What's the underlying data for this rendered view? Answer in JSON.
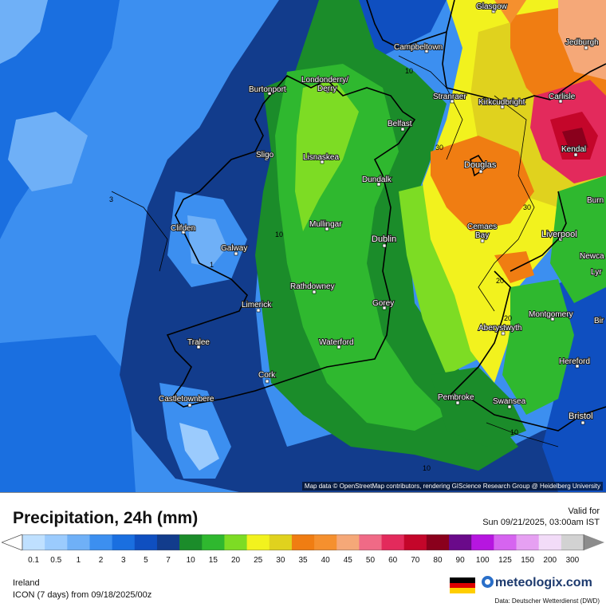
{
  "map": {
    "attribution": "Map data © OpenStreetMap contributors, rendering GIScience Research Group @ Heidelberg University",
    "cities": [
      {
        "name": "Glasgow"
      },
      {
        "name": "Campbeltown"
      },
      {
        "name": "Jedburgh"
      },
      {
        "name": "Londonderry/\nDerry"
      },
      {
        "name": "Burtonport"
      },
      {
        "name": "Stranraer"
      },
      {
        "name": "Kirkcudbright"
      },
      {
        "name": "Carlisle"
      },
      {
        "name": "Belfast"
      },
      {
        "name": "Sligo"
      },
      {
        "name": "Lisnaskea"
      },
      {
        "name": "Kendal"
      },
      {
        "name": "Douglas"
      },
      {
        "name": "Dundalk"
      },
      {
        "name": "Clifden"
      },
      {
        "name": "Mullingar"
      },
      {
        "name": "Galway"
      },
      {
        "name": "Dublin"
      },
      {
        "name": "Cemaes\nBay"
      },
      {
        "name": "Liverpool"
      },
      {
        "name": "Rathdowney"
      },
      {
        "name": "Limerick"
      },
      {
        "name": "Gorey"
      },
      {
        "name": "Montgomery"
      },
      {
        "name": "Aberystwyth"
      },
      {
        "name": "Tralee"
      },
      {
        "name": "Waterford"
      },
      {
        "name": "Hereford"
      },
      {
        "name": "Cork"
      },
      {
        "name": "Castletownbere"
      },
      {
        "name": "Pembroke"
      },
      {
        "name": "Swansea"
      },
      {
        "name": "Bristol"
      }
    ],
    "cut_labels": [
      "Burn",
      "Newca",
      "Lyr",
      "Bir"
    ],
    "contour_labels": [
      "10",
      "30",
      "30",
      "10",
      "3",
      "1",
      "20",
      "20",
      "10",
      "10"
    ]
  },
  "legend": {
    "title": "Precipitation, 24h (mm)",
    "valid_for_label": "Valid for",
    "valid_time": "Sun 09/21/2025, 03:00am IST",
    "scale": [
      {
        "value": "0.1",
        "color": "#bfe0ff"
      },
      {
        "value": "0.5",
        "color": "#9bcbfd"
      },
      {
        "value": "1",
        "color": "#6fb0f7"
      },
      {
        "value": "2",
        "color": "#3c8ff0"
      },
      {
        "value": "3",
        "color": "#1a6fe0"
      },
      {
        "value": "5",
        "color": "#0f4fc0"
      },
      {
        "value": "7",
        "color": "#123c8c"
      },
      {
        "value": "10",
        "color": "#1b8c2a"
      },
      {
        "value": "15",
        "color": "#2fb82f"
      },
      {
        "value": "20",
        "color": "#7ddc24"
      },
      {
        "value": "25",
        "color": "#f2f21e"
      },
      {
        "value": "30",
        "color": "#e0d21e"
      },
      {
        "value": "35",
        "color": "#f07d12"
      },
      {
        "value": "40",
        "color": "#f5902e"
      },
      {
        "value": "45",
        "color": "#f5a878"
      },
      {
        "value": "50",
        "color": "#f06a86"
      },
      {
        "value": "60",
        "color": "#e32a5c"
      },
      {
        "value": "70",
        "color": "#c4062a"
      },
      {
        "value": "80",
        "color": "#8a001c"
      },
      {
        "value": "90",
        "color": "#6a0a8a"
      },
      {
        "value": "100",
        "color": "#b616e0"
      },
      {
        "value": "125",
        "color": "#d664f0"
      },
      {
        "value": "150",
        "color": "#e6a0f2"
      },
      {
        "value": "200",
        "color": "#f2dcf8"
      },
      {
        "value": "300",
        "color": "#d2d2d2"
      }
    ],
    "region": "Ireland",
    "model_run": "ICON (7 days)  from  09/18/2025/00z",
    "brand": "meteologix.com",
    "data_source": "Data: Deutscher Wetterdienst  (DWD)"
  }
}
